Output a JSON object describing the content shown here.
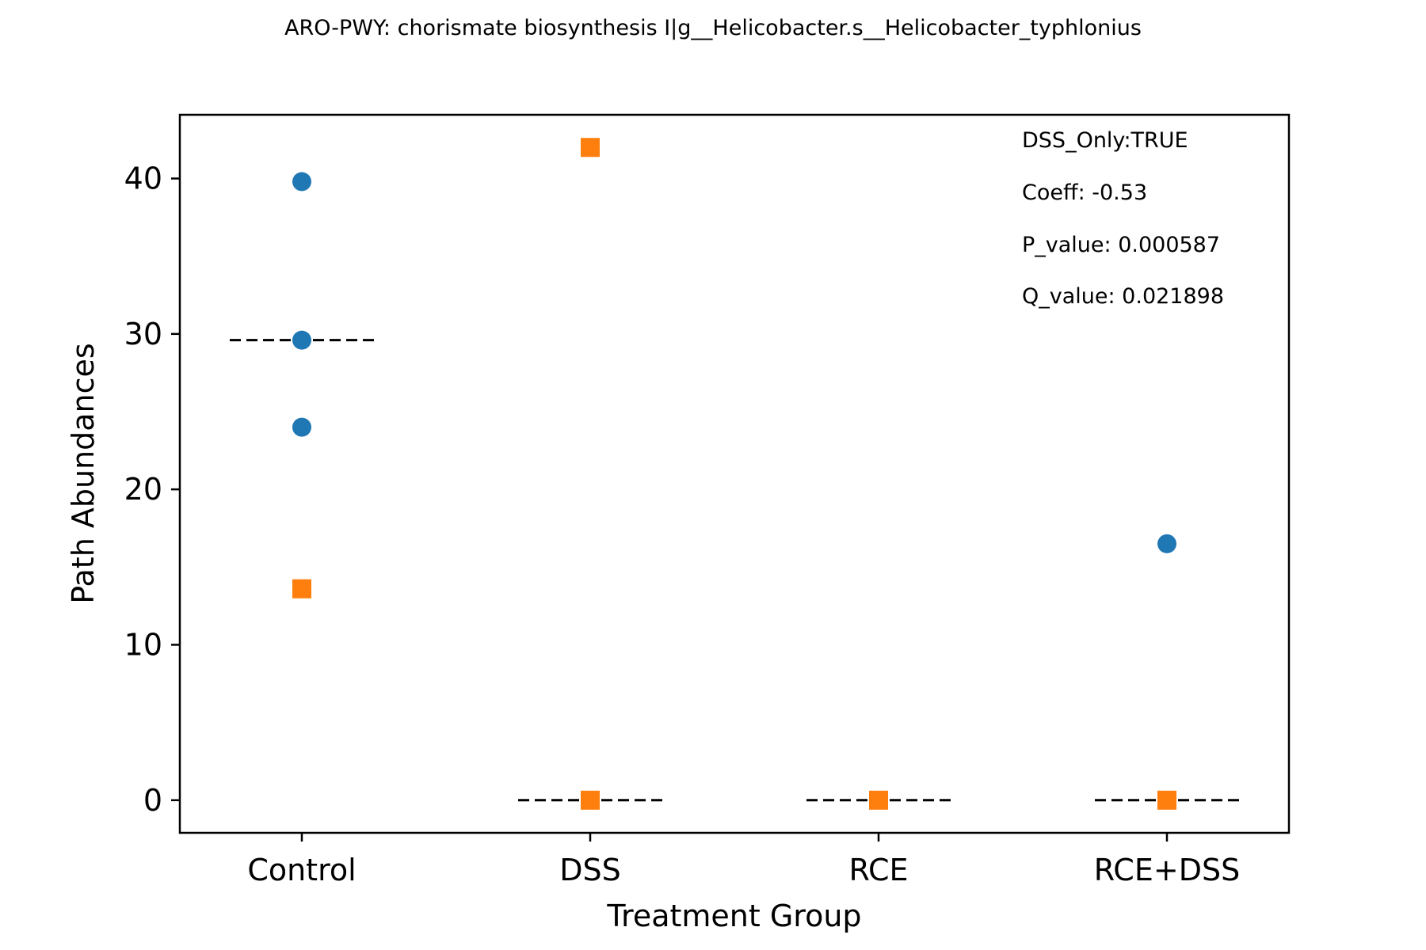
{
  "chart_data": {
    "type": "scatter",
    "title": "ARO-PWY: chorismate biosynthesis I|g__Helicobacter.s__Helicobacter_typhlonius",
    "xlabel": "Treatment Group",
    "ylabel": "Path Abundances",
    "categories": [
      "Control",
      "DSS",
      "RCE",
      "RCE+DSS"
    ],
    "ylim": [
      -2.1,
      44.1
    ],
    "yticks": [
      0,
      10,
      20,
      30,
      40
    ],
    "grid": false,
    "legend": "none",
    "colors": {
      "circle": "#1f77b4",
      "square": "#ff7f0e",
      "median_line": "#000000"
    },
    "series": [
      {
        "marker": "circle",
        "points": [
          {
            "category": "Control",
            "value": 39.8
          },
          {
            "category": "Control",
            "value": 29.6
          },
          {
            "category": "Control",
            "value": 24.0
          },
          {
            "category": "RCE+DSS",
            "value": 16.5
          }
        ]
      },
      {
        "marker": "square",
        "points": [
          {
            "category": "Control",
            "value": 13.6
          },
          {
            "category": "DSS",
            "value": 42.0
          },
          {
            "category": "DSS",
            "value": 0
          },
          {
            "category": "RCE",
            "value": 0
          },
          {
            "category": "RCE+DSS",
            "value": 0
          }
        ]
      }
    ],
    "medians": [
      {
        "category": "Control",
        "value": 29.6
      },
      {
        "category": "DSS",
        "value": 0
      },
      {
        "category": "RCE",
        "value": 0
      },
      {
        "category": "RCE+DSS",
        "value": 0
      }
    ],
    "annotations": [
      "DSS_Only:TRUE",
      "Coeff: -0.53",
      "P_value: 0.000587",
      "Q_value: 0.021898"
    ]
  }
}
